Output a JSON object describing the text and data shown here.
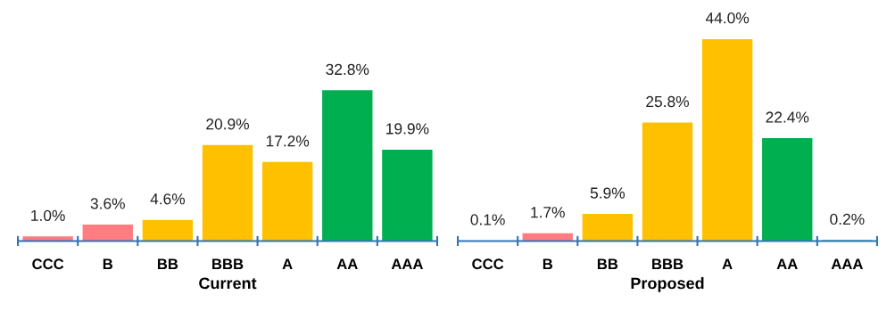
{
  "chart_data": [
    {
      "type": "bar",
      "xlabel": "Current",
      "categories": [
        "CCC",
        "B",
        "BB",
        "BBB",
        "A",
        "AA",
        "AAA"
      ],
      "values": [
        1.0,
        3.6,
        4.6,
        20.9,
        17.2,
        32.8,
        19.9
      ],
      "value_labels": [
        "1.0%",
        "3.6%",
        "4.6%",
        "20.9%",
        "17.2%",
        "32.8%",
        "19.9%"
      ],
      "colors": [
        "#ff7c80",
        "#ff7c80",
        "#ffc000",
        "#ffc000",
        "#ffc000",
        "#00b050",
        "#00b050"
      ],
      "tick_labels": "x",
      "grid": false,
      "legend": false
    },
    {
      "type": "bar",
      "xlabel": "Proposed",
      "categories": [
        "CCC",
        "B",
        "BB",
        "BBB",
        "A",
        "AA",
        "AAA"
      ],
      "values": [
        0.1,
        1.7,
        5.9,
        25.8,
        44.0,
        22.4,
        0.2
      ],
      "value_labels": [
        "0.1%",
        "1.7%",
        "5.9%",
        "25.8%",
        "44.0%",
        "22.4%",
        "0.2%"
      ],
      "colors": [
        "#ff7c80",
        "#ff7c80",
        "#ffc000",
        "#ffc000",
        "#ffc000",
        "#00b050",
        "#00b050"
      ],
      "tick_labels": "x",
      "grid": false,
      "legend": false
    }
  ]
}
